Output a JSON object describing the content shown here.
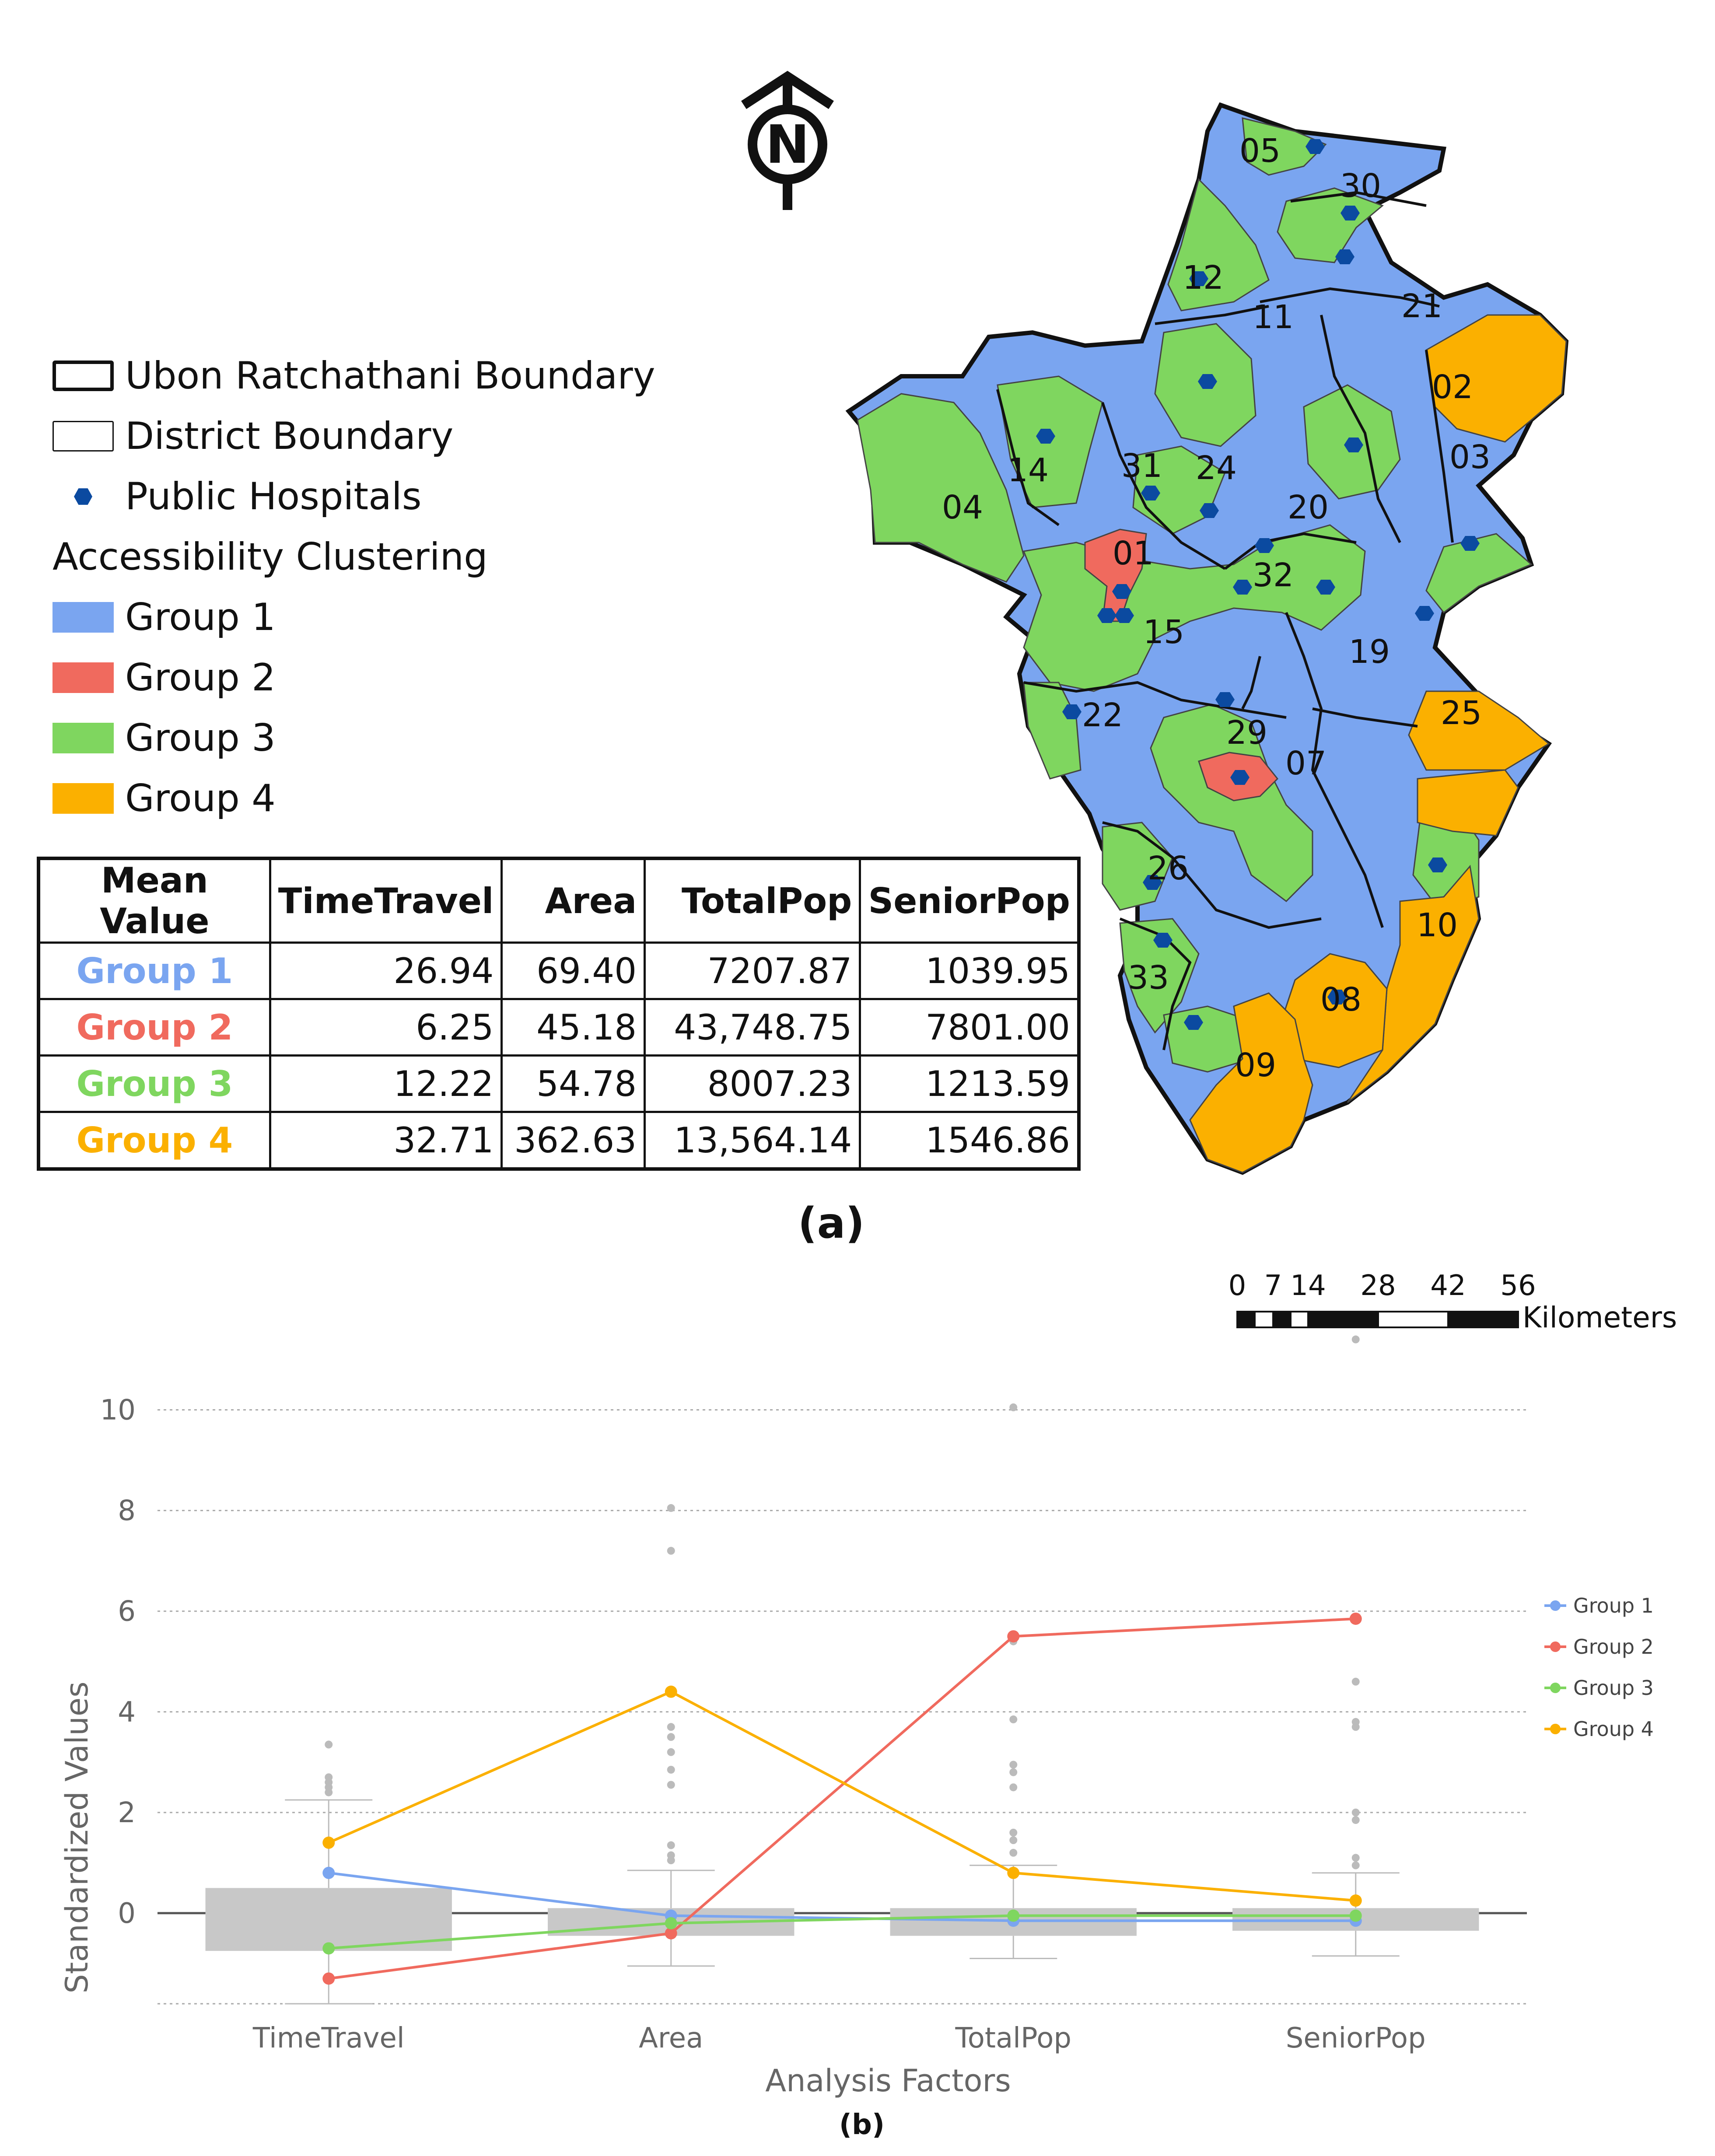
{
  "legend": {
    "items": [
      {
        "label": "Ubon Ratchathani Boundary",
        "kind": "thick-outline"
      },
      {
        "label": "District Boundary",
        "kind": "thin-outline"
      },
      {
        "label": "Public Hospitals",
        "kind": "hex-dot"
      },
      {
        "label": "Accessibility Clustering",
        "kind": "heading"
      },
      {
        "label": "Group 1",
        "kind": "swatch",
        "color": "#7aa5f0"
      },
      {
        "label": "Group 2",
        "kind": "swatch",
        "color": "#f06a5e"
      },
      {
        "label": "Group 3",
        "kind": "swatch",
        "color": "#7fd65f"
      },
      {
        "label": "Group 4",
        "kind": "swatch",
        "color": "#fbb000"
      }
    ]
  },
  "mean_table": {
    "headers": [
      "Mean Value",
      "TimeTravel",
      "Area",
      "TotalPop",
      "SeniorPop"
    ],
    "rows": [
      {
        "group": "Group 1",
        "color": "#7aa5f0",
        "values": [
          "26.94",
          "69.40",
          "7207.87",
          "1039.95"
        ]
      },
      {
        "group": "Group 2",
        "color": "#f06a5e",
        "values": [
          "6.25",
          "45.18",
          "43,748.75",
          "7801.00"
        ]
      },
      {
        "group": "Group 3",
        "color": "#7fd65f",
        "values": [
          "12.22",
          "54.78",
          "8007.23",
          "1213.59"
        ]
      },
      {
        "group": "Group 4",
        "color": "#fbb000",
        "values": [
          "32.71",
          "362.63",
          "13,564.14",
          "1546.86"
        ]
      }
    ]
  },
  "map": {
    "north_label": "N",
    "district_labels": [
      "05",
      "30",
      "12",
      "11",
      "21",
      "02",
      "03",
      "14",
      "31",
      "24",
      "04",
      "20",
      "01",
      "32",
      "15",
      "19",
      "22",
      "29",
      "25",
      "07",
      "26",
      "10",
      "33",
      "08",
      "09"
    ],
    "scale_ticks": [
      "0",
      "7",
      "14",
      "28",
      "42",
      "56"
    ],
    "scale_unit": "Kilometers",
    "colors": {
      "group1": "#7aa5f0",
      "group2": "#f06a5e",
      "group3": "#7fd65f",
      "group4": "#fbb000",
      "hospital": "#0b4aa0"
    }
  },
  "captions": {
    "a": "(a)",
    "b": "(b)"
  },
  "chart_data": {
    "type": "line",
    "title": "",
    "xlabel": "Analysis Factors",
    "ylabel": "Standardized Values",
    "categories": [
      "TimeTravel",
      "Area",
      "TotalPop",
      "SeniorPop"
    ],
    "ylim": [
      -1.8,
      11.5
    ],
    "yticks": [
      0,
      2,
      4,
      6,
      8,
      10
    ],
    "series": [
      {
        "name": "Group 1",
        "color": "#7aa5f0",
        "values": [
          0.8,
          -0.05,
          -0.15,
          -0.15
        ]
      },
      {
        "name": "Group 2",
        "color": "#f06a5e",
        "values": [
          -1.3,
          -0.4,
          5.5,
          5.85
        ]
      },
      {
        "name": "Group 3",
        "color": "#7fd65f",
        "values": [
          -0.7,
          -0.2,
          -0.05,
          -0.05
        ]
      },
      {
        "name": "Group 4",
        "color": "#fbb000",
        "values": [
          1.4,
          4.4,
          0.8,
          0.25
        ]
      }
    ],
    "boxplots": [
      {
        "category": "TimeTravel",
        "q1": -0.75,
        "q3": 0.5,
        "whisker_low": -1.8,
        "whisker_high": 2.25,
        "outliers": [
          2.4,
          2.5,
          2.6,
          2.7,
          3.35
        ]
      },
      {
        "category": "Area",
        "q1": -0.45,
        "q3": 0.1,
        "whisker_low": -1.05,
        "whisker_high": 0.85,
        "outliers": [
          1.05,
          1.15,
          1.35,
          2.55,
          2.85,
          3.2,
          3.5,
          3.7,
          7.2,
          8.05
        ]
      },
      {
        "category": "TotalPop",
        "q1": -0.45,
        "q3": 0.1,
        "whisker_low": -0.9,
        "whisker_high": 0.95,
        "outliers": [
          1.2,
          1.45,
          1.6,
          2.5,
          2.8,
          2.95,
          3.85,
          5.4,
          10.05
        ]
      },
      {
        "category": "SeniorPop",
        "q1": -0.35,
        "q3": 0.1,
        "whisker_low": -0.85,
        "whisker_high": 0.8,
        "outliers": [
          0.95,
          1.1,
          1.85,
          2.0,
          3.7,
          3.8,
          4.6,
          11.4
        ]
      }
    ],
    "legend_position": "right"
  }
}
